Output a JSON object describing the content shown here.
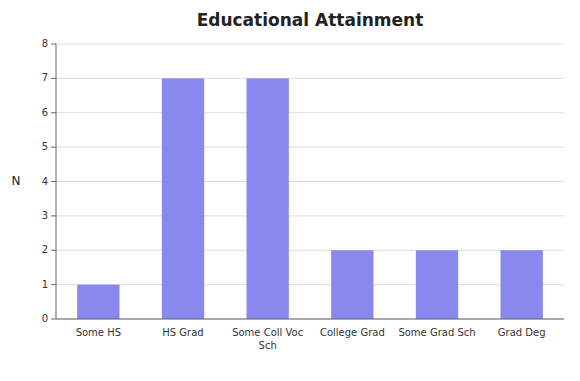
{
  "chart_data": {
    "type": "bar",
    "title": "Educational Attainment",
    "categories": [
      "Some HS",
      "HS Grad",
      "Some Coll Voc\nSch",
      "College Grad",
      "Some Grad Sch",
      "Grad Deg"
    ],
    "values": [
      1,
      7,
      7,
      2,
      2,
      2
    ],
    "color": "#8888ee",
    "ylabel": "N",
    "ylim": [
      0,
      8
    ],
    "yticks": [
      0,
      1,
      2,
      3,
      4,
      5,
      6,
      7,
      8
    ],
    "grid": true
  }
}
